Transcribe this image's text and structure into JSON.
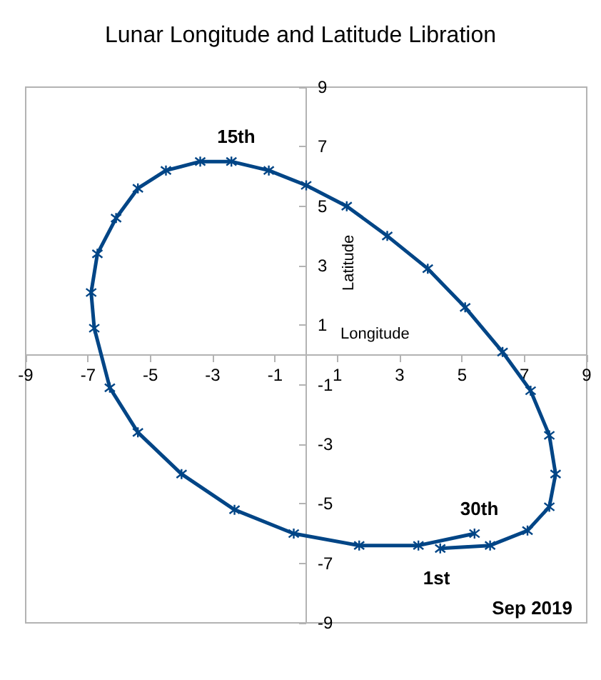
{
  "chart_data": {
    "type": "line",
    "title": "Lunar Longitude and Latitude Libration",
    "xlabel": "Longitude",
    "ylabel": "Latitude",
    "marker": "cross",
    "line_style": "solid",
    "grid": false,
    "xlim": [
      -9,
      9
    ],
    "ylim": [
      -9,
      9
    ],
    "xticks": [
      -9,
      -7,
      -5,
      -3,
      -1,
      1,
      3,
      5,
      7,
      9
    ],
    "yticks": [
      -9,
      -7,
      -5,
      -3,
      -1,
      1,
      3,
      5,
      7,
      9
    ],
    "series": [
      {
        "color": "#004586",
        "x": [
          4.3,
          5.9,
          7.1,
          7.8,
          8.0,
          7.8,
          7.2,
          6.3,
          5.1,
          3.9,
          2.6,
          1.3,
          0.0,
          -1.2,
          -2.4,
          -3.4,
          -4.5,
          -5.4,
          -6.1,
          -6.7,
          -6.9,
          -6.8,
          -6.3,
          -5.4,
          -4.0,
          -2.3,
          -0.4,
          1.7,
          3.6,
          5.4
        ],
        "values": [
          -6.5,
          -6.4,
          -5.9,
          -5.1,
          -4.0,
          -2.7,
          -1.2,
          0.1,
          1.6,
          2.9,
          4.0,
          5.0,
          5.7,
          6.2,
          6.5,
          6.5,
          6.2,
          5.6,
          4.6,
          3.4,
          2.1,
          0.9,
          -1.1,
          -2.6,
          -4.0,
          -5.2,
          -6.0,
          -6.4,
          -6.4,
          -6.0
        ]
      }
    ],
    "annotations": [
      {
        "text": "15th",
        "x": -2.4,
        "y": 6.5
      },
      {
        "text": "30th",
        "x": 5.4,
        "y": -6.0
      },
      {
        "text": "1st",
        "x": 4.3,
        "y": -6.5
      },
      "Sep 2019"
    ]
  }
}
